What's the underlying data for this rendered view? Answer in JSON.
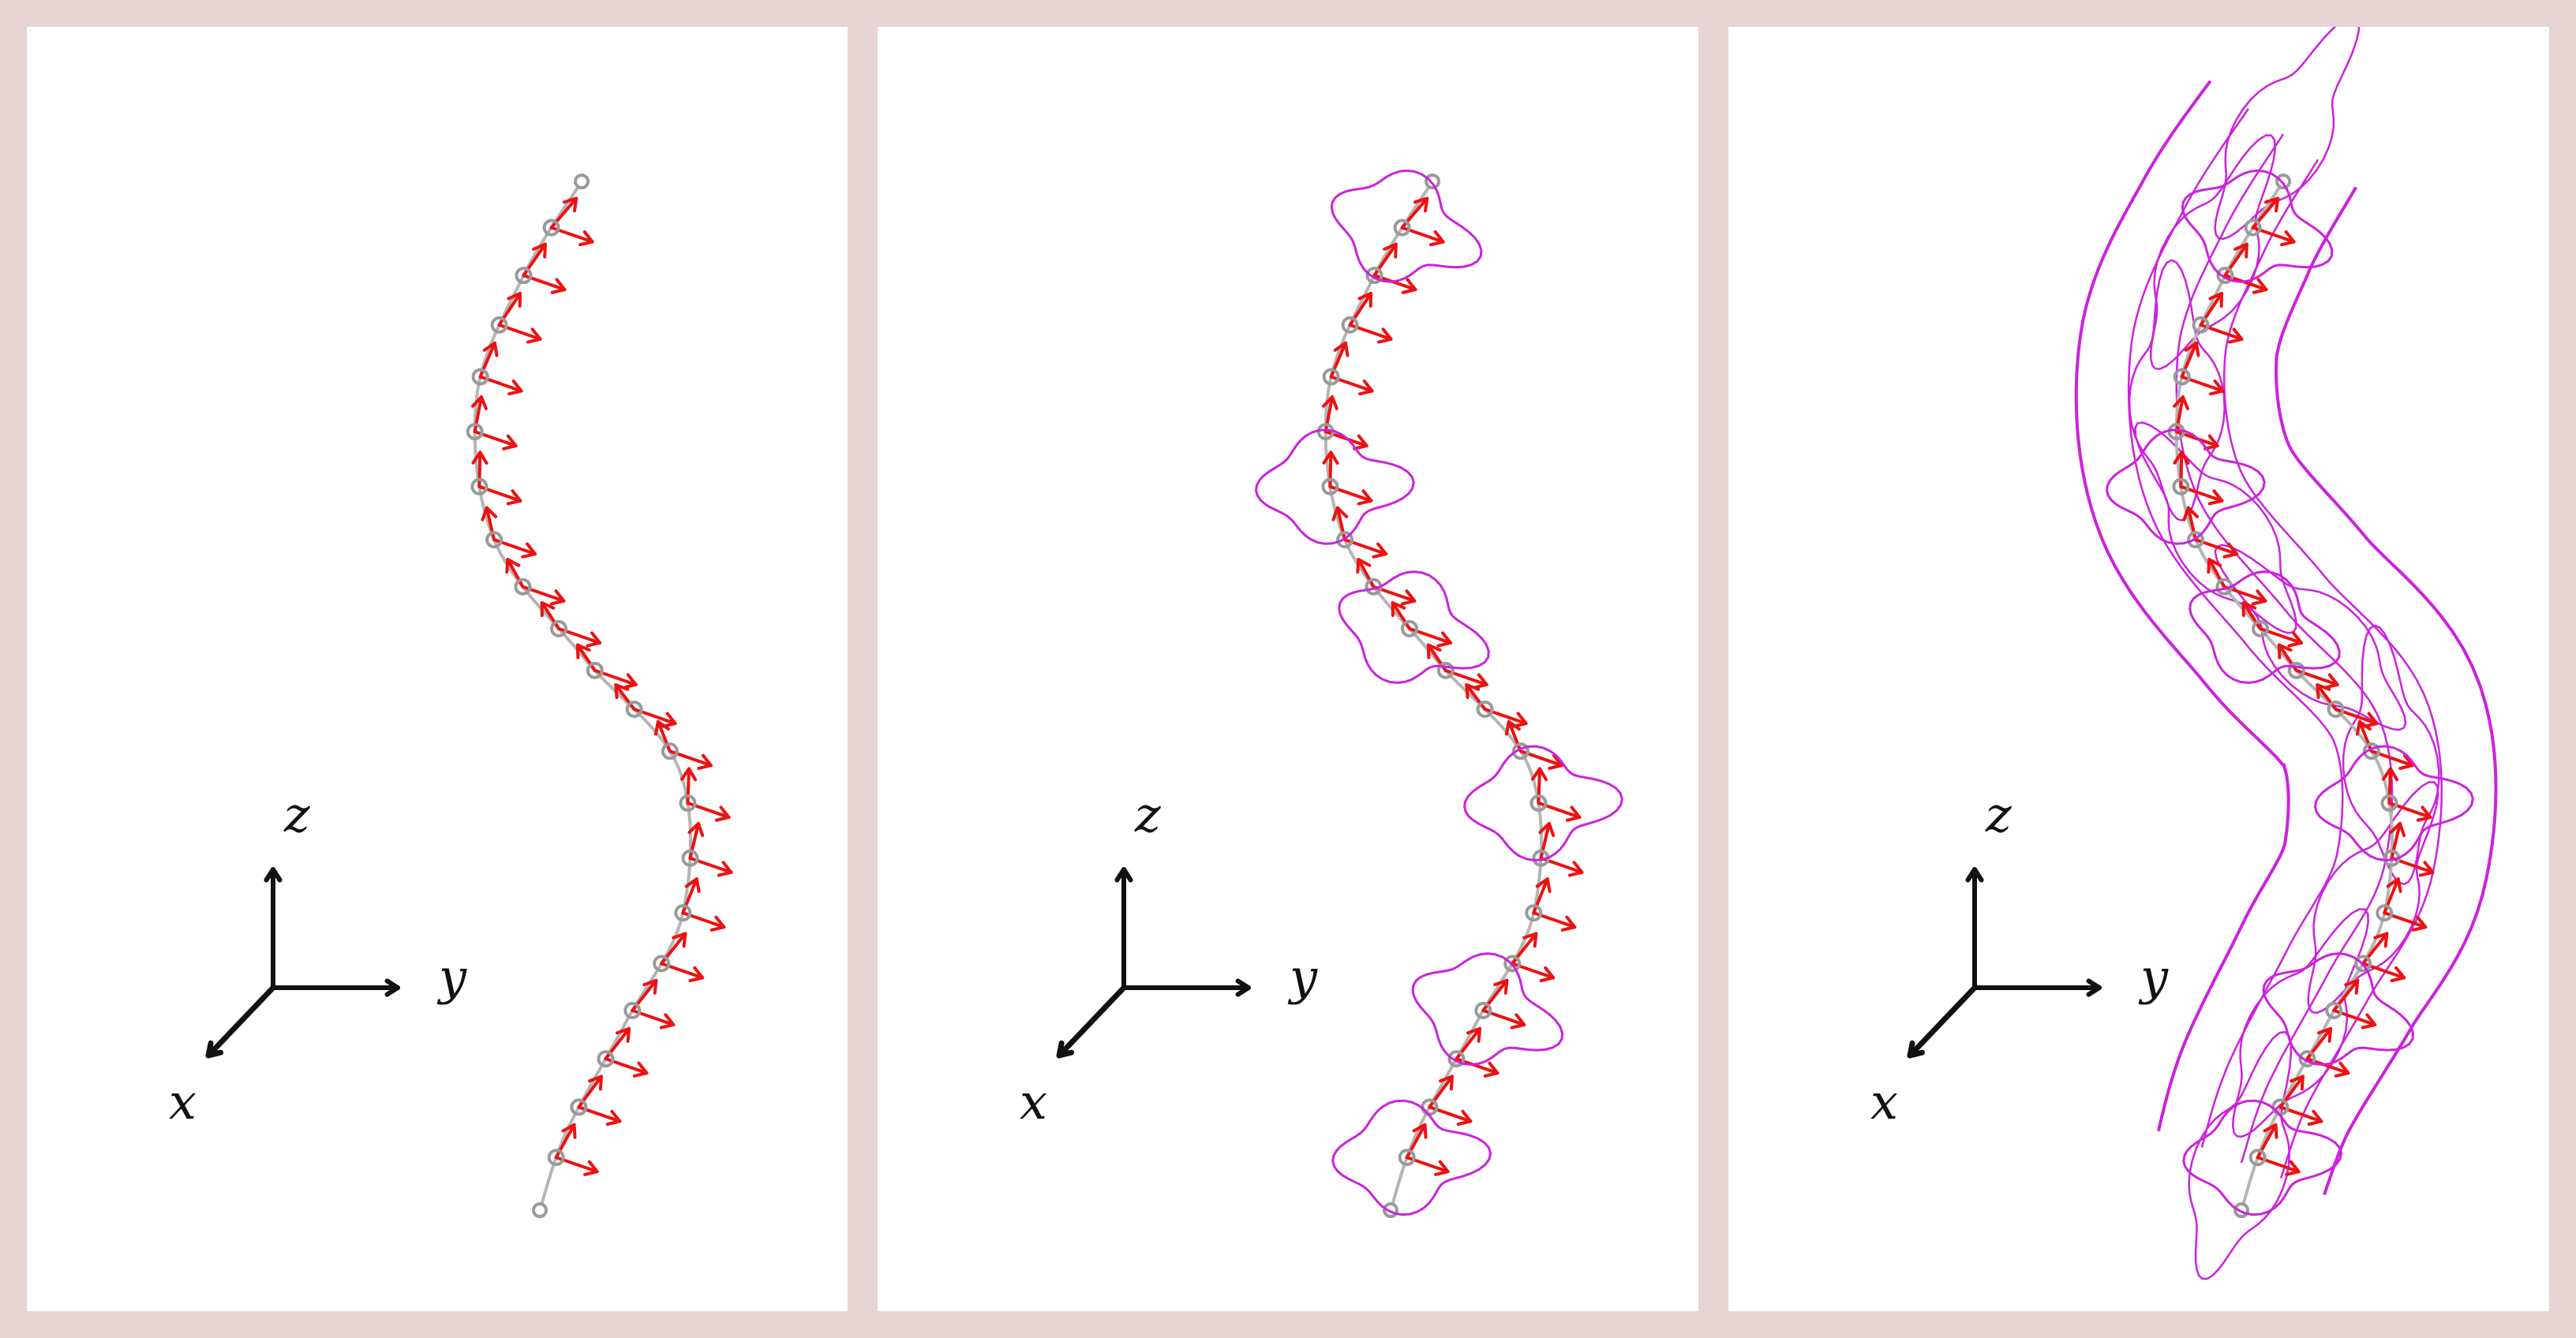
{
  "colors": {
    "background": "#e8d4d4",
    "panel": "#ffffff",
    "curve": "#b5b5b5",
    "node": "#9a9a9a",
    "frame_arrow": "#ee1111",
    "cross_section": "#cc22dd",
    "axes": "#111111"
  },
  "axes": {
    "z": "z",
    "y": "y",
    "x": "x"
  },
  "panels": [
    {
      "id": "curve-with-frames",
      "show_sections": false,
      "show_tube": false
    },
    {
      "id": "curve-with-cross-sections",
      "show_sections": true,
      "show_tube": false
    },
    {
      "id": "swept-tube-surface",
      "show_sections": true,
      "show_tube": true
    }
  ],
  "icons": {
    "frame": "arrow-pair-icon",
    "section": "blob-cross-section-icon"
  }
}
